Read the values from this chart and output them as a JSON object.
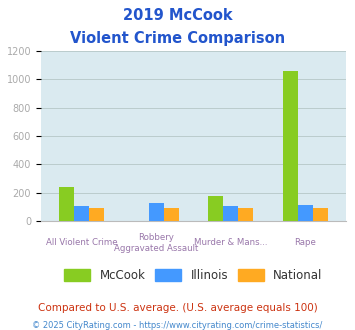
{
  "title_line1": "2019 McCook",
  "title_line2": "Violent Crime Comparison",
  "top_labels": [
    "",
    "Robbery",
    "",
    ""
  ],
  "bot_labels": [
    "All Violent Crime",
    "Aggravated Assault",
    "Murder & Mans...",
    "Rape"
  ],
  "series": {
    "McCook": [
      240,
      0,
      180,
      1060
    ],
    "Illinois": [
      105,
      125,
      105,
      115
    ],
    "National": [
      95,
      95,
      92,
      92
    ]
  },
  "colors": {
    "McCook": "#88cc22",
    "Illinois": "#4499ff",
    "National": "#ffaa22"
  },
  "ylim": [
    0,
    1200
  ],
  "yticks": [
    0,
    200,
    400,
    600,
    800,
    1000,
    1200
  ],
  "title_color": "#2255cc",
  "axis_bg_color": "#daeaf0",
  "bg_color": "#ffffff",
  "grid_color": "#bbcccc",
  "ytick_color": "#aaaaaa",
  "xlabel_color": "#9977aa",
  "footnote1": "Compared to U.S. average. (U.S. average equals 100)",
  "footnote2": "© 2025 CityRating.com - https://www.cityrating.com/crime-statistics/",
  "footnote1_color": "#cc3311",
  "footnote2_color": "#4488cc"
}
